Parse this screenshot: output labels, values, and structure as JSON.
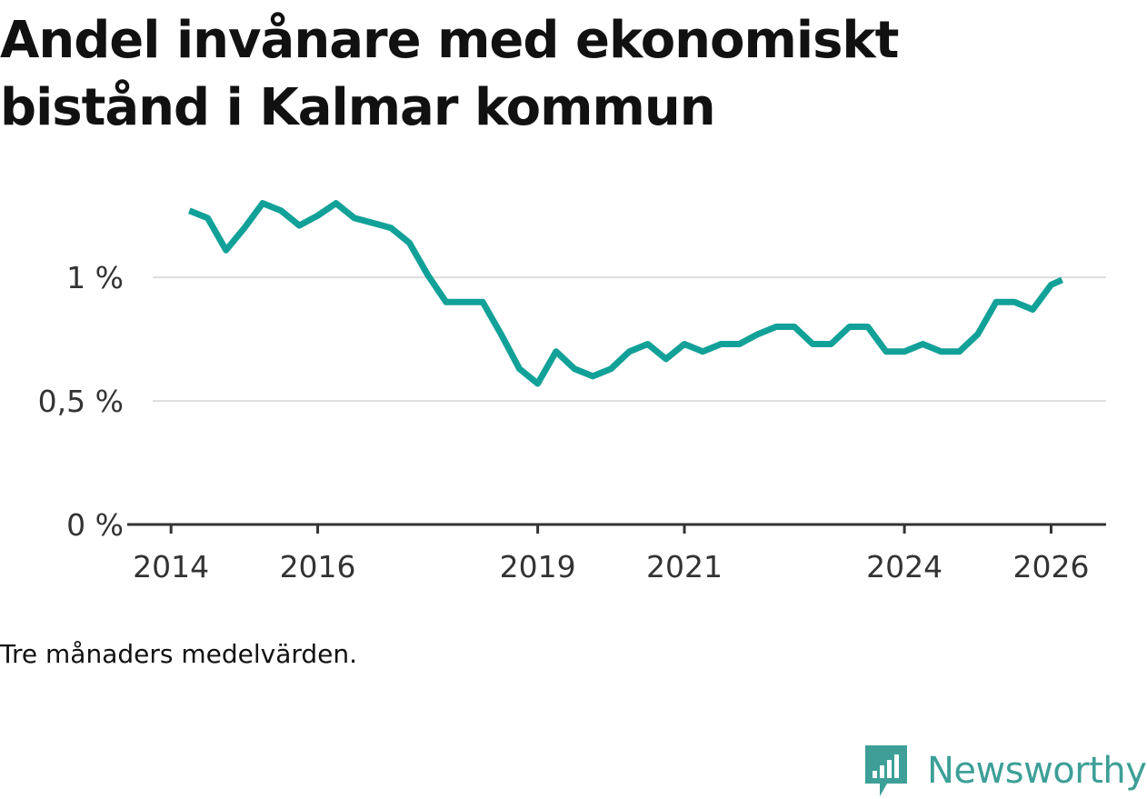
{
  "title": "Andel invånare med ekonomiskt bistånd i Kalmar kommun",
  "note": "Tre månaders medelvärden.",
  "brand": {
    "name": "Newsworthy",
    "color": "#3d9f97"
  },
  "colors": {
    "line": "#12a198",
    "grid": "#dddddd",
    "axis": "#333333"
  },
  "chart_data": {
    "type": "line",
    "title": "Andel invånare med ekonomiskt bistånd i Kalmar kommun",
    "xlabel": "",
    "ylabel": "",
    "ylim": [
      0,
      1.35
    ],
    "xlim": [
      2013.75,
      2026.75
    ],
    "grid": true,
    "y_ticks": [
      {
        "value": 0,
        "label": "0 %"
      },
      {
        "value": 0.5,
        "label": "0,5 %"
      },
      {
        "value": 1,
        "label": "1 %"
      }
    ],
    "x_ticks": [
      {
        "value": 2014,
        "label": "2014"
      },
      {
        "value": 2016,
        "label": "2016"
      },
      {
        "value": 2019,
        "label": "2019"
      },
      {
        "value": 2021,
        "label": "2021"
      },
      {
        "value": 2024,
        "label": "2024"
      },
      {
        "value": 2026,
        "label": "2026"
      }
    ],
    "series": [
      {
        "name": "Andel invånare med ekonomiskt bistånd",
        "x": [
          2014.25,
          2014.5,
          2014.75,
          2015,
          2015.25,
          2015.5,
          2015.75,
          2016,
          2016.25,
          2016.5,
          2016.75,
          2017,
          2017.25,
          2017.5,
          2017.75,
          2018,
          2018.25,
          2018.5,
          2018.75,
          2019,
          2019.25,
          2019.5,
          2019.75,
          2020,
          2020.25,
          2020.5,
          2020.75,
          2021,
          2021.25,
          2021.5,
          2021.75,
          2022,
          2022.25,
          2022.5,
          2022.75,
          2023,
          2023.25,
          2023.5,
          2023.75,
          2024,
          2024.25,
          2024.5,
          2024.75,
          2025,
          2025.25,
          2025.5,
          2025.75,
          2026,
          2026.15
        ],
        "values": [
          1.27,
          1.24,
          1.11,
          1.2,
          1.3,
          1.27,
          1.21,
          1.25,
          1.3,
          1.24,
          1.22,
          1.2,
          1.14,
          1.01,
          0.9,
          0.9,
          0.9,
          0.77,
          0.63,
          0.57,
          0.7,
          0.63,
          0.6,
          0.63,
          0.7,
          0.73,
          0.67,
          0.73,
          0.7,
          0.73,
          0.73,
          0.77,
          0.8,
          0.8,
          0.73,
          0.73,
          0.8,
          0.8,
          0.7,
          0.7,
          0.73,
          0.7,
          0.7,
          0.77,
          0.9,
          0.9,
          0.87,
          0.97,
          0.99
        ]
      }
    ]
  }
}
